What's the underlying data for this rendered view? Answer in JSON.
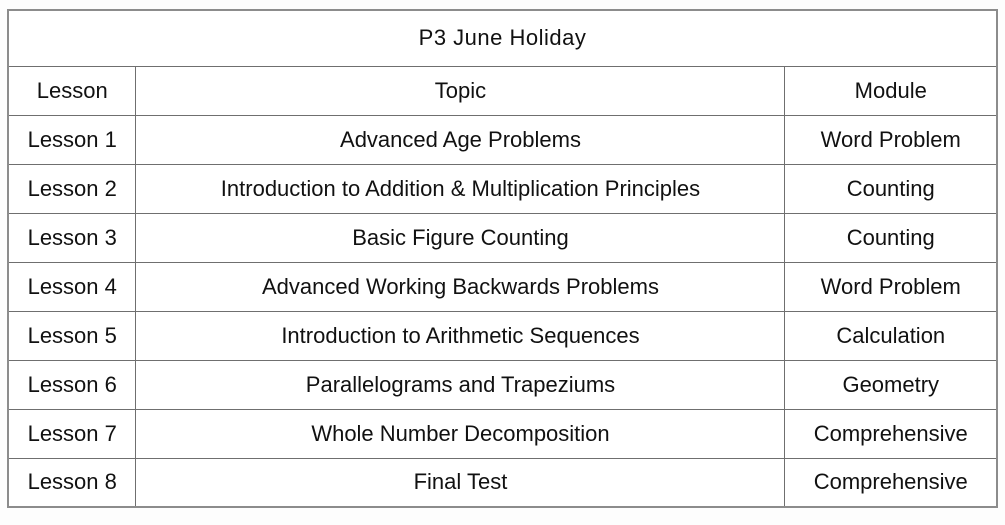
{
  "title": "P3 June Holiday",
  "table": {
    "columns": [
      "Lesson",
      "Topic",
      "Module"
    ],
    "rows": [
      {
        "lesson": "Lesson 1",
        "topic": "Advanced Age Problems",
        "module": "Word Problem"
      },
      {
        "lesson": "Lesson 2",
        "topic": "Introduction to Addition & Multiplication Principles",
        "module": "Counting"
      },
      {
        "lesson": "Lesson 3",
        "topic": "Basic Figure Counting",
        "module": "Counting"
      },
      {
        "lesson": "Lesson 4",
        "topic": "Advanced Working Backwards Problems",
        "module": "Word Problem"
      },
      {
        "lesson": "Lesson 5",
        "topic": "Introduction to Arithmetic Sequences",
        "module": "Calculation"
      },
      {
        "lesson": "Lesson 6",
        "topic": "Parallelograms and Trapeziums",
        "module": "Geometry"
      },
      {
        "lesson": "Lesson 7",
        "topic": "Whole Number Decomposition",
        "module": "Comprehensive"
      },
      {
        "lesson": "Lesson 8",
        "topic": "Final Test",
        "module": "Comprehensive"
      }
    ]
  },
  "colors": {
    "text": "#111111",
    "border_outer": "#8c8c8c",
    "border_inner": "#6f6f6f",
    "cell_background": "#ffffff",
    "page_background": "#fdfdfd"
  }
}
